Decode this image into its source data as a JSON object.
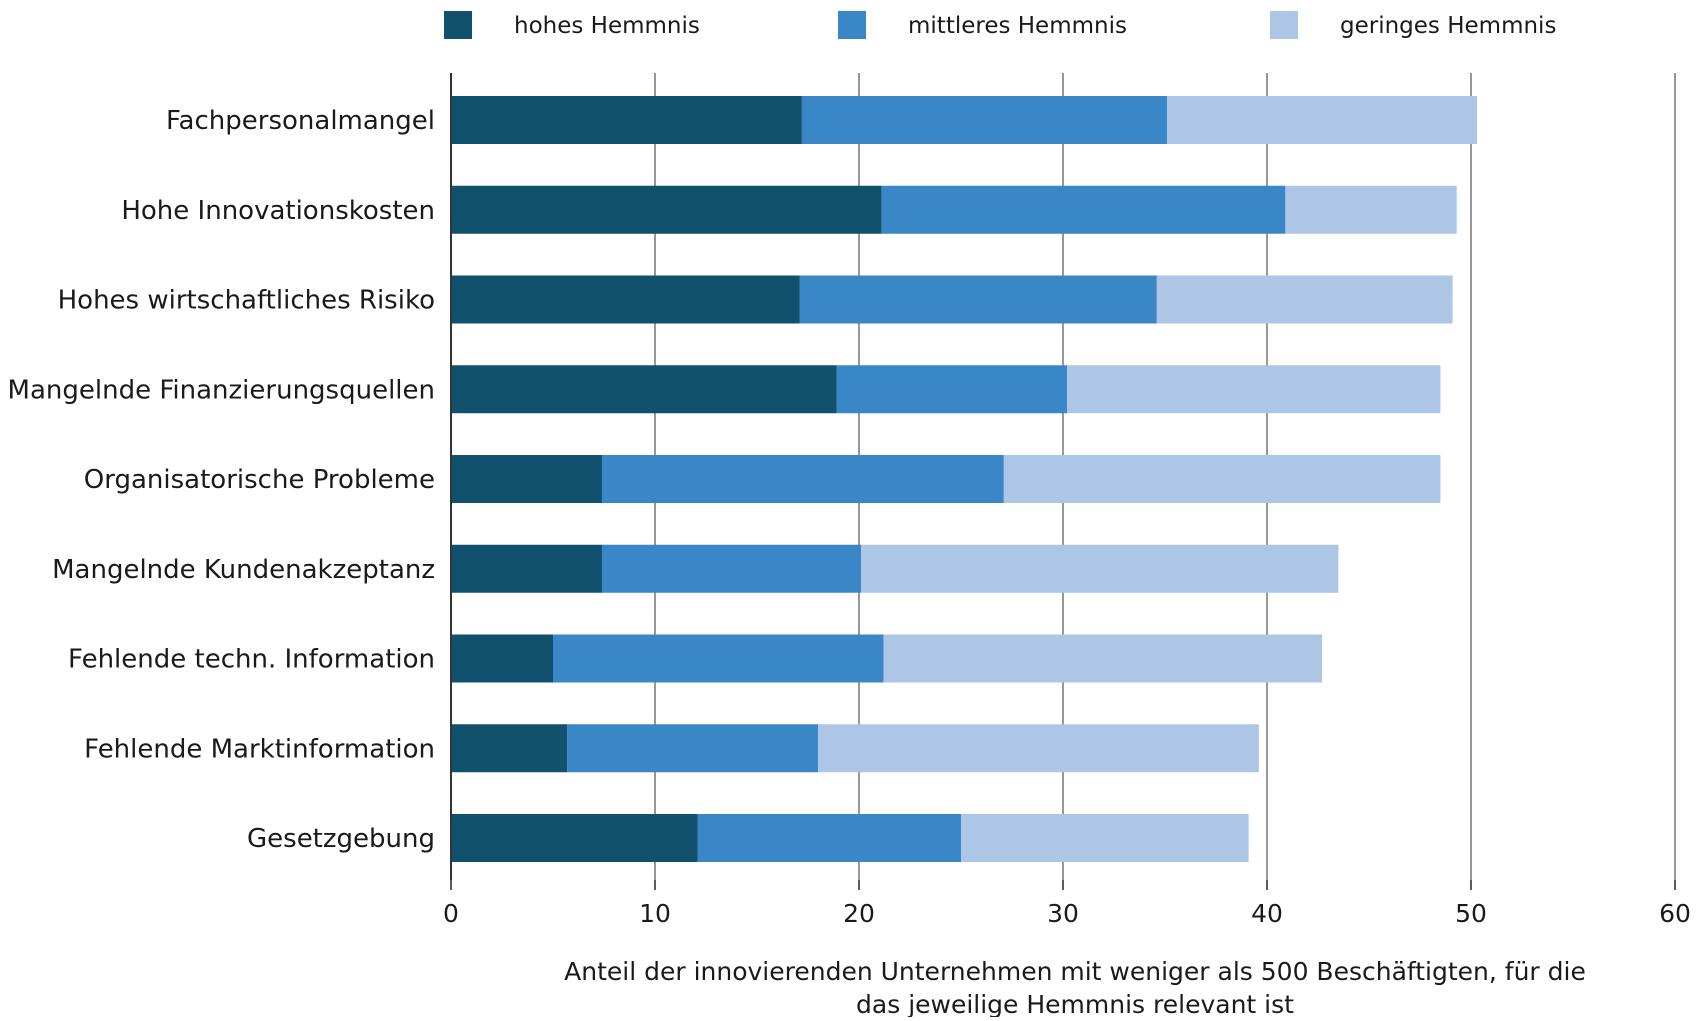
{
  "chart_data": {
    "type": "bar",
    "orientation": "horizontal",
    "stacked": true,
    "categories": [
      "Fachpersonalmangel",
      "Hohe Innovationskosten",
      "Hohes wirtschaftliches Risiko",
      "Mangelnde Finanzierungsquellen",
      "Organisatorische Probleme",
      "Mangelnde Kundenakzeptanz",
      "Fehlende techn. Information",
      "Fehlende Marktinformation",
      "Gesetzgebung"
    ],
    "series": [
      {
        "name": "hohes Hemmnis",
        "color": "#12516e",
        "values": [
          17.2,
          21.1,
          17.1,
          18.9,
          7.4,
          7.4,
          5.0,
          5.7,
          12.1
        ]
      },
      {
        "name": "mittleres  Hemmnis",
        "color": "#3a87c8",
        "values": [
          17.9,
          19.8,
          17.5,
          11.3,
          19.7,
          12.7,
          16.2,
          12.3,
          12.9
        ]
      },
      {
        "name": "geringes  Hemmnis",
        "color": "#adc6e6",
        "values": [
          15.2,
          8.4,
          14.5,
          18.3,
          21.4,
          23.4,
          21.5,
          21.6,
          14.1
        ]
      }
    ],
    "xlim": [
      0,
      60
    ],
    "xticks": [
      0,
      10,
      20,
      30,
      40,
      50,
      60
    ],
    "xlabel_lines": [
      "Anteil der innovierenden Unternehmen mit weniger als 500 Beschäftigten, für die",
      "das jeweilige Hemmnis relevant ist"
    ],
    "ylabel": "",
    "title": "",
    "grid": "vertical",
    "legend_position": "top"
  }
}
